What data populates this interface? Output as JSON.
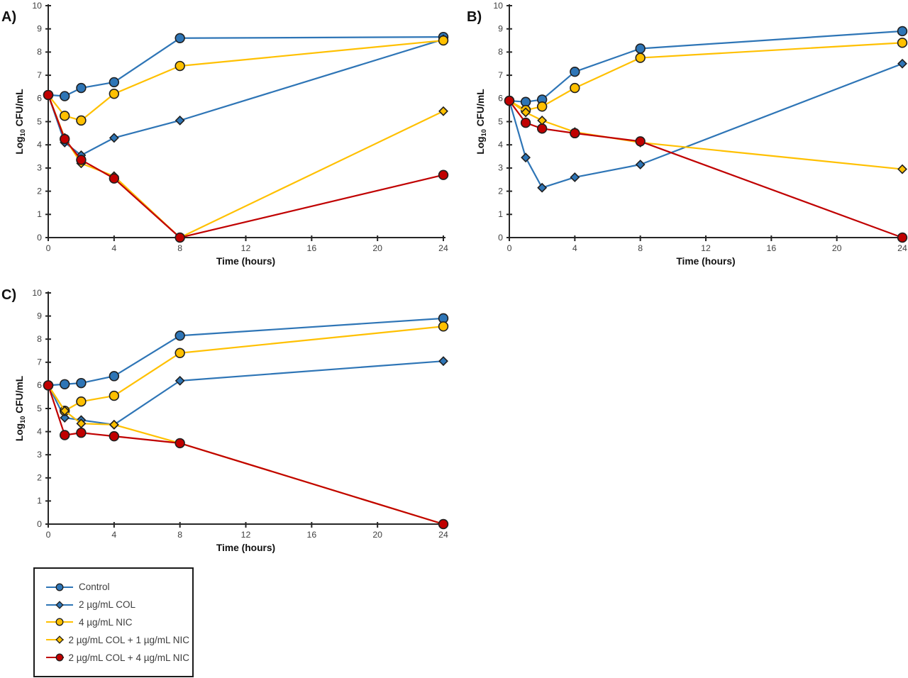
{
  "figure": {
    "background": "#ffffff",
    "colors": {
      "blue": "#2E75B6",
      "yellow": "#FFC000",
      "red": "#C00000",
      "marker_stroke": "#1f1f1f",
      "axis": "#262626",
      "tick_label": "#404040",
      "title": "#111111"
    }
  },
  "series_meta": [
    {
      "name": "Control",
      "color": "blue",
      "marker": "circle"
    },
    {
      "name": "2 µg/mL COL",
      "color": "blue",
      "marker": "diamond"
    },
    {
      "name": "4 µg/mL NIC",
      "color": "yellow",
      "marker": "circle"
    },
    {
      "name": "2 µg/mL COL + 1 µg/mL NIC",
      "color": "yellow",
      "marker": "diamond"
    },
    {
      "name": "2 µg/mL COL + 4 µg/mL NIC",
      "color": "red",
      "marker": "circle"
    }
  ],
  "chart_data": [
    {
      "type": "line",
      "panel_label": "A)",
      "xlabel": "Time (hours)",
      "ylabel_parts": {
        "prefix": "Log",
        "sub": "10",
        "suffix": " CFU/mL"
      },
      "x": [
        0,
        1,
        2,
        4,
        8,
        24
      ],
      "xticks": [
        0,
        4,
        8,
        12,
        16,
        20,
        24
      ],
      "yticks": [
        0,
        1,
        2,
        3,
        4,
        5,
        6,
        7,
        8,
        9,
        10
      ],
      "xlim": [
        0,
        24
      ],
      "ylim": [
        0,
        10
      ],
      "grid": false,
      "series": [
        {
          "name": "Control",
          "values": [
            6.15,
            6.1,
            6.45,
            6.7,
            8.6,
            8.65
          ]
        },
        {
          "name": "2 µg/mL COL",
          "values": [
            6.15,
            4.1,
            3.55,
            4.3,
            5.05,
            8.55
          ]
        },
        {
          "name": "4 µg/mL NIC",
          "values": [
            6.15,
            5.25,
            5.05,
            6.2,
            7.4,
            8.5
          ]
        },
        {
          "name": "2 µg/mL COL + 1 µg/mL NIC",
          "values": [
            6.15,
            4.3,
            3.2,
            2.65,
            0.0,
            5.45
          ]
        },
        {
          "name": "2 µg/mL COL + 4 µg/mL NIC",
          "values": [
            6.15,
            4.25,
            3.35,
            2.55,
            0.0,
            2.7
          ]
        }
      ]
    },
    {
      "type": "line",
      "panel_label": "B)",
      "xlabel": "Time (hours)",
      "ylabel_parts": {
        "prefix": "Log",
        "sub": "10",
        "suffix": " CFU/mL"
      },
      "x": [
        0,
        1,
        2,
        4,
        8,
        24
      ],
      "xticks": [
        0,
        4,
        8,
        12,
        16,
        20,
        24
      ],
      "yticks": [
        0,
        1,
        2,
        3,
        4,
        5,
        6,
        7,
        8,
        9,
        10
      ],
      "xlim": [
        0,
        24
      ],
      "ylim": [
        0,
        10
      ],
      "grid": false,
      "series": [
        {
          "name": "Control",
          "values": [
            5.9,
            5.85,
            5.95,
            7.15,
            8.15,
            8.9
          ]
        },
        {
          "name": "2 µg/mL COL",
          "values": [
            5.9,
            3.45,
            2.15,
            2.6,
            3.15,
            7.5
          ]
        },
        {
          "name": "4 µg/mL NIC",
          "values": [
            5.9,
            5.5,
            5.65,
            6.45,
            7.75,
            8.4
          ]
        },
        {
          "name": "2 µg/mL COL + 1 µg/mL NIC",
          "values": [
            5.9,
            5.4,
            5.05,
            4.55,
            4.1,
            2.95
          ]
        },
        {
          "name": "2 µg/mL COL + 4 µg/mL NIC",
          "values": [
            5.9,
            4.95,
            4.7,
            4.5,
            4.15,
            0.0
          ]
        }
      ]
    },
    {
      "type": "line",
      "panel_label": "C)",
      "xlabel": "Time (hours)",
      "ylabel_parts": {
        "prefix": "Log",
        "sub": "10",
        "suffix": " CFU/mL"
      },
      "x": [
        0,
        1,
        2,
        4,
        8,
        24
      ],
      "xticks": [
        0,
        4,
        8,
        12,
        16,
        20,
        24
      ],
      "yticks": [
        0,
        1,
        2,
        3,
        4,
        5,
        6,
        7,
        8,
        9,
        10
      ],
      "xlim": [
        0,
        24
      ],
      "ylim": [
        0,
        10
      ],
      "grid": false,
      "series": [
        {
          "name": "Control",
          "values": [
            6.0,
            6.05,
            6.1,
            6.4,
            8.15,
            8.9
          ]
        },
        {
          "name": "2 µg/mL COL",
          "values": [
            6.0,
            4.6,
            4.5,
            4.3,
            6.2,
            7.05
          ]
        },
        {
          "name": "4 µg/mL NIC",
          "values": [
            6.0,
            4.9,
            5.3,
            5.55,
            7.4,
            8.55
          ]
        },
        {
          "name": "2 µg/mL COL + 1 µg/mL NIC",
          "values": [
            6.0,
            4.9,
            4.35,
            4.3,
            3.5,
            0.0
          ]
        },
        {
          "name": "2 µg/mL COL + 4 µg/mL NIC",
          "values": [
            6.0,
            3.85,
            3.95,
            3.8,
            3.5,
            0.0
          ]
        }
      ]
    }
  ],
  "legend": {
    "items": [
      "Control",
      "2 µg/mL COL",
      "4 µg/mL NIC",
      "2 µg/mL COL + 1 µg/mL NIC",
      "2 µg/mL COL + 4 µg/mL NIC"
    ]
  }
}
